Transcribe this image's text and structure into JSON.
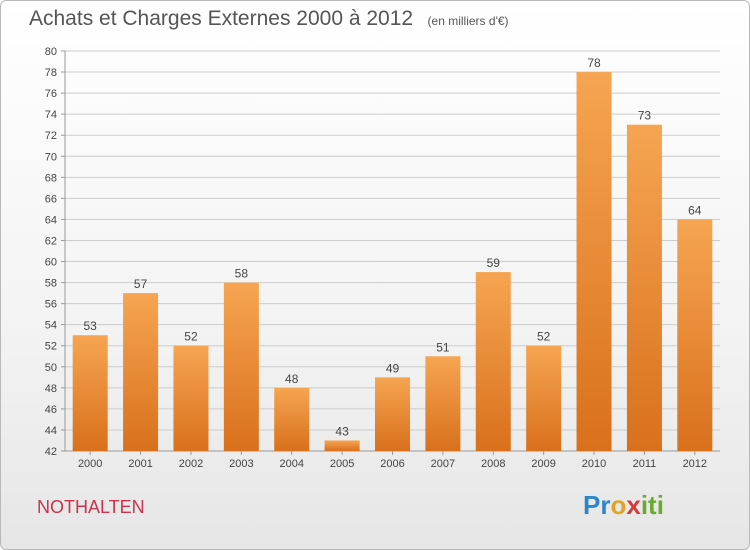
{
  "header": {
    "title": "Achats et Charges Externes 2000 à 2012",
    "unit": "(en milliers d'€)"
  },
  "footer": {
    "town": "NOTHALTEN",
    "logo": "Proxiti",
    "logo_colors": [
      "#2e86c8",
      "#e0a322",
      "#d33a3a",
      "#6aaa2f"
    ]
  },
  "colors": {
    "bar_light": "#f6a552",
    "bar_dark": "#d9701c",
    "grid": "#cccccc",
    "text": "#444444",
    "town": "#c8344e"
  },
  "chart_data": {
    "type": "bar",
    "title": "Achats et Charges Externes 2000 à 2012",
    "subtitle": "(en milliers d'€)",
    "categories": [
      "2000",
      "2001",
      "2002",
      "2003",
      "2004",
      "2005",
      "2006",
      "2007",
      "2008",
      "2009",
      "2010",
      "2011",
      "2012"
    ],
    "values": [
      53,
      57,
      52,
      58,
      48,
      43,
      49,
      51,
      59,
      52,
      78,
      73,
      64
    ],
    "ylim": [
      42,
      80
    ],
    "ytick_step": 2,
    "grid": true,
    "xlabel": "",
    "ylabel": ""
  }
}
